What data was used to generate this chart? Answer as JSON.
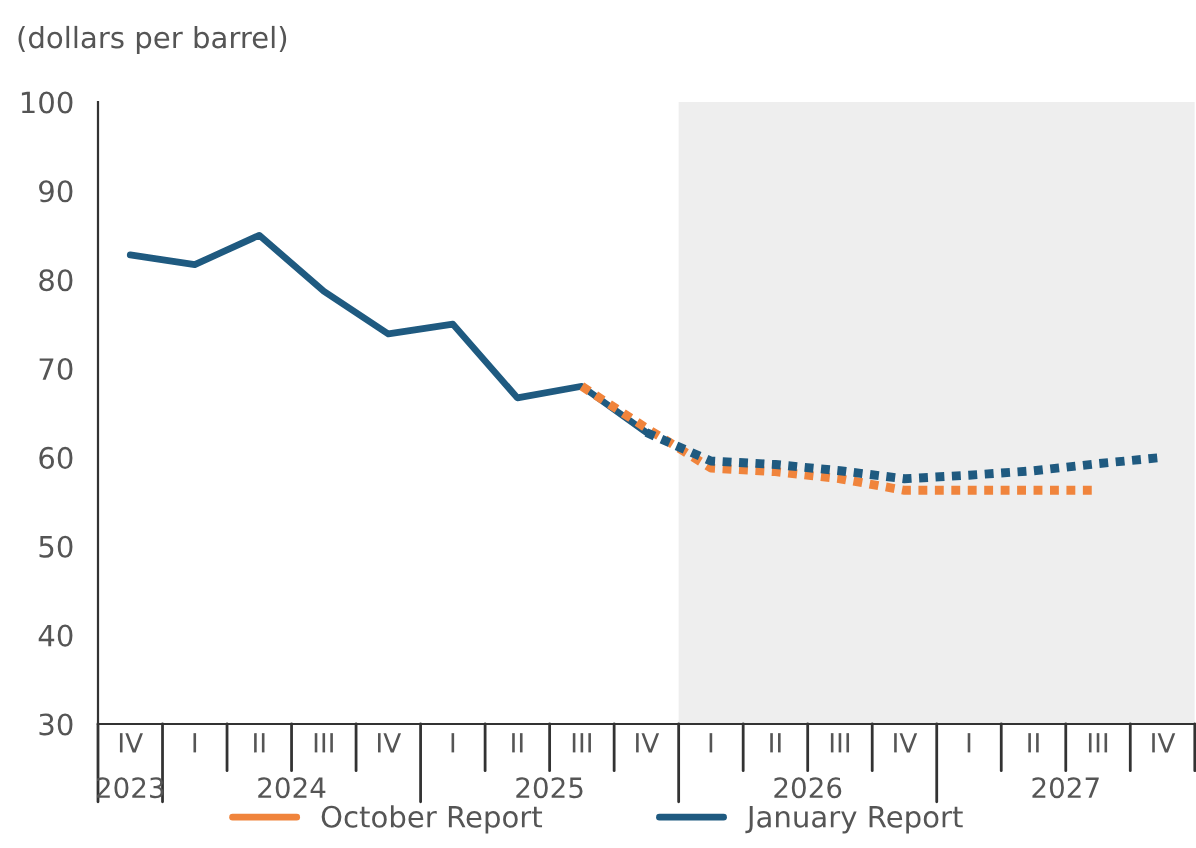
{
  "chart_data": {
    "type": "line",
    "ylabel": "(dollars per barrel)",
    "categories": [
      "IV",
      "I",
      "II",
      "III",
      "IV",
      "I",
      "II",
      "III",
      "IV",
      "I",
      "II",
      "III",
      "IV",
      "I",
      "II",
      "III",
      "IV"
    ],
    "series": [
      {
        "color": "#1f5a80",
        "line_style": "solid",
        "values": [
          82.8,
          81.7,
          85,
          78.7,
          73.9,
          75,
          66.7,
          68,
          62.8,
          null,
          null,
          null,
          null,
          null,
          null,
          null,
          null
        ]
      },
      {
        "name": "October Report",
        "color": "#f0843c",
        "line_style": "dotted",
        "values": [
          null,
          null,
          null,
          null,
          null,
          null,
          null,
          68,
          63.3,
          58.8,
          58.4,
          57.6,
          56.3,
          56.3,
          56.3,
          56.3,
          null
        ]
      },
      {
        "name": "January Report",
        "color": "#1f5a80",
        "line_style": "dotted",
        "values": [
          null,
          null,
          null,
          null,
          null,
          null,
          null,
          null,
          62.8,
          59.6,
          59.2,
          58.5,
          57.6,
          58,
          58.5,
          59.3,
          60
        ]
      }
    ],
    "ylim": [
      30,
      100
    ],
    "yticks": [
      30,
      40,
      50,
      60,
      70,
      80,
      90,
      100
    ],
    "annotations": [
      "2023",
      "2024",
      "2025",
      "2026",
      "2027"
    ],
    "grid": false,
    "legend": "bottom"
  }
}
